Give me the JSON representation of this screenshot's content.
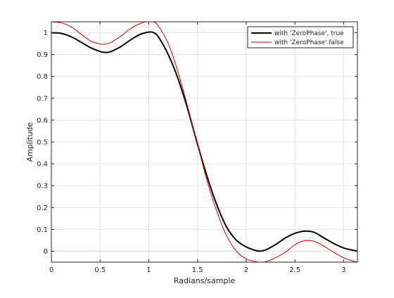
{
  "chart_data": {
    "type": "line",
    "title": "",
    "xlabel": "Radians/sample",
    "ylabel": "Amplitude",
    "xlim": [
      0,
      3.14159
    ],
    "ylim": [
      -0.05,
      1.05
    ],
    "grid": true,
    "legend_position": "top-right",
    "x_ticks": [
      0,
      0.5,
      1,
      1.5,
      2,
      2.5,
      3
    ],
    "x_tick_labels": [
      "0",
      "0.5",
      "1",
      "1.5",
      "2",
      "2.5",
      "3"
    ],
    "y_ticks": [
      0,
      0.1,
      0.2,
      0.3,
      0.4,
      0.5,
      0.6,
      0.7,
      0.8,
      0.9,
      1
    ],
    "y_tick_labels": [
      "0",
      "0.1",
      "0.2",
      "0.3",
      "0.4",
      "0.5",
      "0.6",
      "0.7",
      "0.8",
      "0.9",
      "1"
    ],
    "series": [
      {
        "name": "with 'ZeroPhase', true",
        "color": "#000000",
        "x": [
          0,
          0.1,
          0.2,
          0.3,
          0.4,
          0.5,
          0.55,
          0.6,
          0.7,
          0.8,
          0.9,
          1.0,
          1.05,
          1.1,
          1.2,
          1.3,
          1.4,
          1.5,
          1.6,
          1.7,
          1.8,
          1.9,
          2.0,
          2.1,
          2.15,
          2.2,
          2.3,
          2.4,
          2.5,
          2.6,
          2.7,
          2.8,
          2.9,
          3.0,
          3.1,
          3.14159
        ],
        "y": [
          1.0,
          0.997,
          0.982,
          0.958,
          0.932,
          0.914,
          0.91,
          0.912,
          0.933,
          0.963,
          0.99,
          1.003,
          1.0,
          0.98,
          0.9,
          0.79,
          0.65,
          0.49,
          0.34,
          0.21,
          0.11,
          0.05,
          0.02,
          0.003,
          0.001,
          0.006,
          0.03,
          0.06,
          0.082,
          0.092,
          0.086,
          0.06,
          0.035,
          0.015,
          0.004,
          0.0
        ]
      },
      {
        "name": "with 'ZeroPhase' false",
        "color": "#cc0000",
        "x": [
          0,
          0.1,
          0.2,
          0.3,
          0.4,
          0.5,
          0.55,
          0.6,
          0.7,
          0.8,
          0.9,
          1.0,
          1.05,
          1.1,
          1.2,
          1.3,
          1.4,
          1.5,
          1.6,
          1.7,
          1.8,
          1.9,
          2.0,
          2.1,
          2.15,
          2.2,
          2.3,
          2.4,
          2.5,
          2.6,
          2.7,
          2.8,
          2.9,
          3.0,
          3.1,
          3.14159
        ],
        "y": [
          1.05,
          1.045,
          1.028,
          0.995,
          0.963,
          0.948,
          0.948,
          0.953,
          0.98,
          1.015,
          1.04,
          1.053,
          1.05,
          1.03,
          0.95,
          0.82,
          0.66,
          0.49,
          0.32,
          0.18,
          0.07,
          0.0,
          -0.035,
          -0.048,
          -0.05,
          -0.048,
          -0.03,
          -0.005,
          0.03,
          0.048,
          0.045,
          0.022,
          -0.005,
          -0.03,
          -0.045,
          -0.05
        ]
      }
    ]
  }
}
